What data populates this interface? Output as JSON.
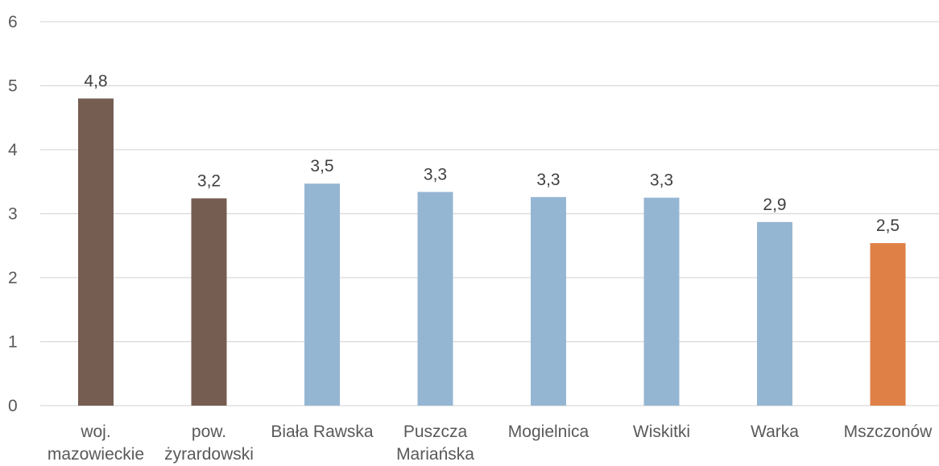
{
  "chart_data": {
    "type": "bar",
    "title": "",
    "xlabel": "",
    "ylabel": "",
    "categories": [
      [
        "woj.",
        "mazowieckie"
      ],
      [
        "pow.",
        "żyrardowski"
      ],
      [
        "Biała Rawska"
      ],
      [
        "Puszcza",
        "Mariańska"
      ],
      [
        "Mogielnica"
      ],
      [
        "Wiskitki"
      ],
      [
        "Warka"
      ],
      [
        "Mszczonów"
      ]
    ],
    "values": [
      4.8,
      3.24,
      3.47,
      3.34,
      3.26,
      3.25,
      2.87,
      2.54
    ],
    "data_labels": [
      "4,8",
      "3,2",
      "3,5",
      "3,3",
      "3,3",
      "3,3",
      "2,9",
      "2,5"
    ],
    "bar_colors": [
      "#765d52",
      "#765d52",
      "#95b6d3",
      "#95b6d3",
      "#95b6d3",
      "#95b6d3",
      "#95b6d3",
      "#df8046"
    ],
    "ylim": [
      0,
      6
    ],
    "y_ticks": [
      "0",
      "1",
      "2",
      "3",
      "4",
      "5",
      "6"
    ],
    "grid": true,
    "legend": "none"
  }
}
